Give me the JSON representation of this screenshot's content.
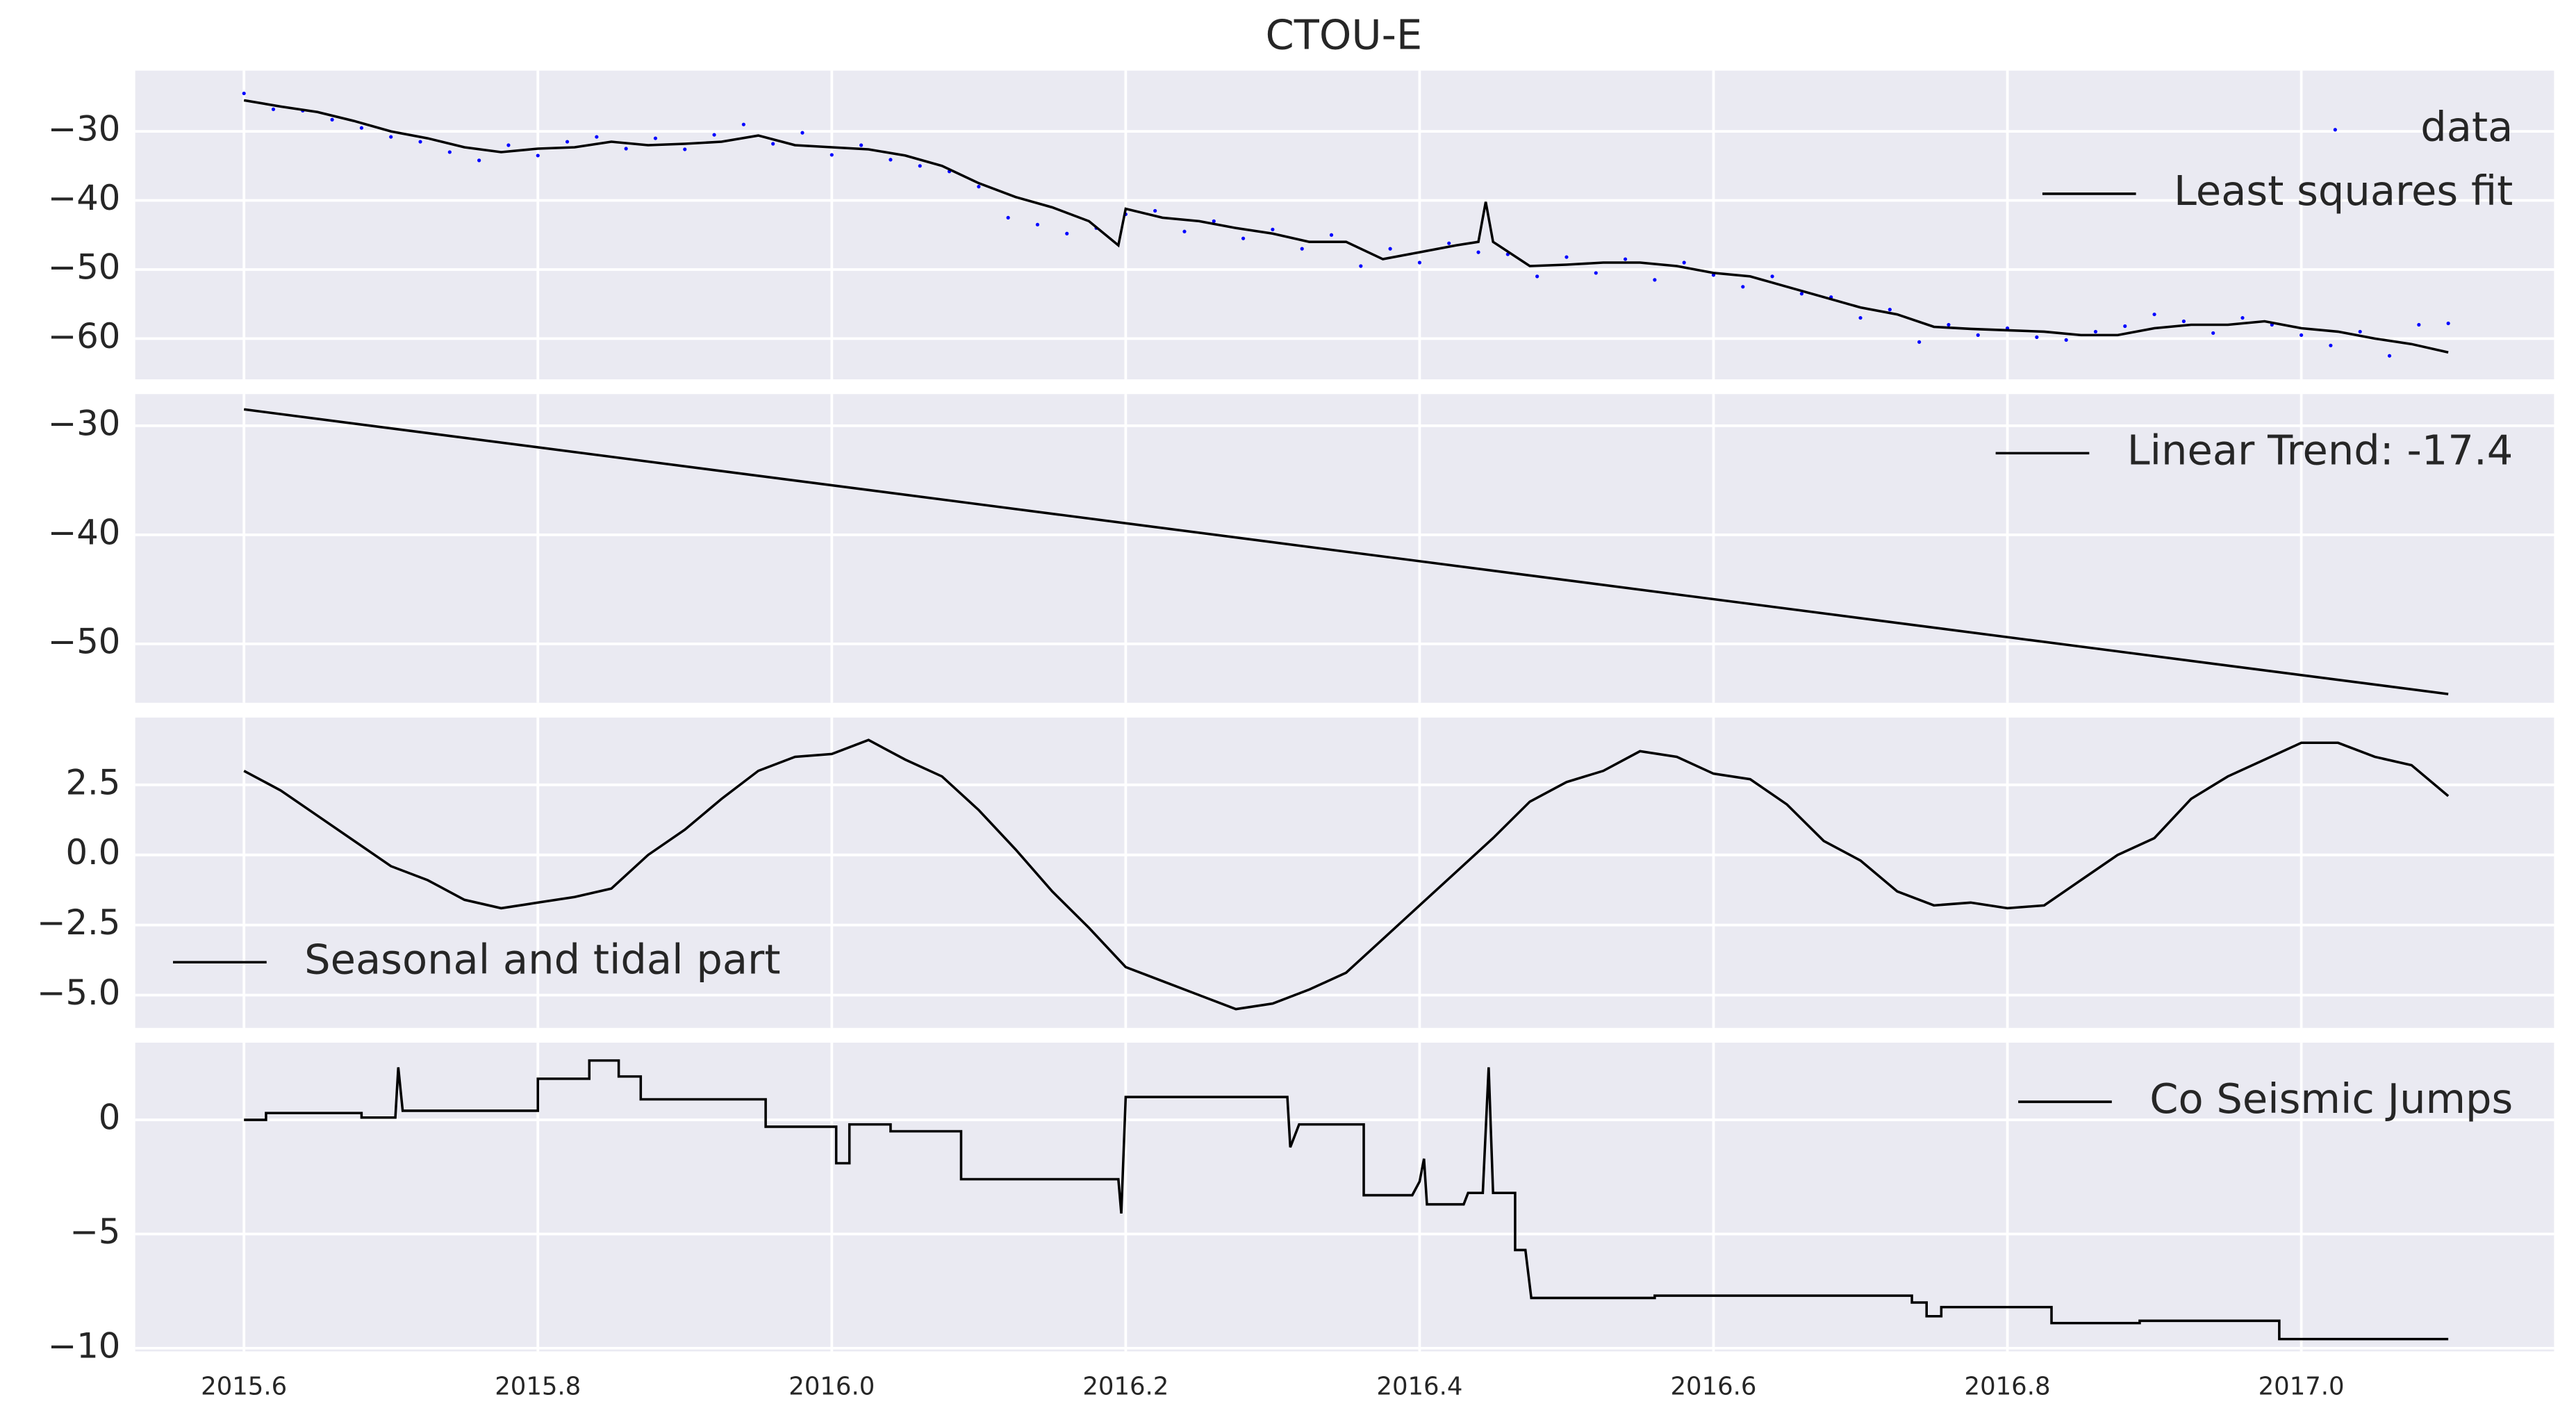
{
  "chart_data": [
    {
      "type": "line",
      "title": "CTOU-E",
      "legend": "upper right",
      "grid": true,
      "xlim": [
        2015.526,
        2017.172
      ],
      "ylim": [
        -65.9,
        -21.2
      ],
      "yticks": [
        {
          "value": -60,
          "label": "−60"
        },
        {
          "value": -50,
          "label": "−50"
        },
        {
          "value": -40,
          "label": "−40"
        },
        {
          "value": -30,
          "label": "−30"
        }
      ],
      "series": [
        {
          "name": "data",
          "color": "#0000ff",
          "style": "dots",
          "x": [
            2015.6,
            2015.62,
            2015.64,
            2015.66,
            2015.68,
            2015.7,
            2015.72,
            2015.74,
            2015.76,
            2015.78,
            2015.8,
            2015.82,
            2015.84,
            2015.86,
            2015.88,
            2015.9,
            2015.92,
            2015.94,
            2015.96,
            2015.98,
            2016.0,
            2016.02,
            2016.04,
            2016.06,
            2016.08,
            2016.1,
            2016.12,
            2016.14,
            2016.16,
            2016.18,
            2016.2,
            2016.22,
            2016.24,
            2016.26,
            2016.28,
            2016.3,
            2016.32,
            2016.34,
            2016.36,
            2016.38,
            2016.4,
            2016.42,
            2016.44,
            2016.46,
            2016.48,
            2016.5,
            2016.52,
            2016.54,
            2016.56,
            2016.58,
            2016.6,
            2016.62,
            2016.64,
            2016.66,
            2016.68,
            2016.7,
            2016.72,
            2016.74,
            2016.76,
            2016.78,
            2016.8,
            2016.82,
            2016.84,
            2016.86,
            2016.88,
            2016.9,
            2016.92,
            2016.94,
            2016.96,
            2016.98,
            2017.0,
            2017.02,
            2017.04,
            2017.06,
            2017.08,
            2017.1
          ],
          "values": [
            -24.5,
            -26.8,
            -27.0,
            -28.3,
            -29.5,
            -30.8,
            -31.5,
            -33.0,
            -34.2,
            -32.0,
            -33.5,
            -31.5,
            -30.8,
            -32.5,
            -31.0,
            -32.6,
            -30.5,
            -29.0,
            -31.8,
            -30.2,
            -33.4,
            -32.0,
            -34.1,
            -35.0,
            -35.8,
            -38.0,
            -42.5,
            -43.5,
            -44.8,
            -44.0,
            -42.0,
            -41.5,
            -44.5,
            -43.0,
            -45.5,
            -44.2,
            -47.0,
            -45.0,
            -49.5,
            -47.0,
            -49.0,
            -46.2,
            -47.5,
            -47.8,
            -51.0,
            -48.2,
            -50.5,
            -48.5,
            -51.5,
            -49.0,
            -50.8,
            -52.5,
            -51.0,
            -53.5,
            -54.0,
            -57.0,
            -55.8,
            -60.5,
            -58.0,
            -59.5,
            -58.5,
            -59.8,
            -60.2,
            -59.0,
            -58.2,
            -56.5,
            -57.5,
            -59.2,
            -57.0,
            -58.0,
            -59.5,
            -61.0,
            -59.0,
            -62.5,
            -58.0,
            -57.8
          ]
        },
        {
          "name": "Least squares fit",
          "color": "#000000",
          "style": "line",
          "x": [
            2015.6,
            2015.625,
            2015.65,
            2015.675,
            2015.7,
            2015.725,
            2015.75,
            2015.775,
            2015.8,
            2015.825,
            2015.85,
            2015.875,
            2015.9,
            2015.925,
            2015.95,
            2015.975,
            2016.0,
            2016.025,
            2016.05,
            2016.075,
            2016.1,
            2016.125,
            2016.15,
            2016.175,
            2016.195,
            2016.2,
            2016.225,
            2016.25,
            2016.275,
            2016.3,
            2016.325,
            2016.35,
            2016.375,
            2016.4,
            2016.425,
            2016.44,
            2016.445,
            2016.45,
            2016.475,
            2016.5,
            2016.525,
            2016.55,
            2016.575,
            2016.6,
            2016.625,
            2016.65,
            2016.675,
            2016.7,
            2016.725,
            2016.75,
            2016.775,
            2016.8,
            2016.825,
            2016.85,
            2016.875,
            2016.9,
            2016.925,
            2016.95,
            2016.975,
            2017.0,
            2017.025,
            2017.05,
            2017.075,
            2017.1
          ],
          "values": [
            -25.5,
            -26.4,
            -27.2,
            -28.5,
            -30.0,
            -31.0,
            -32.3,
            -33.0,
            -32.5,
            -32.3,
            -31.5,
            -32.0,
            -31.8,
            -31.5,
            -30.6,
            -32.0,
            -32.3,
            -32.6,
            -33.5,
            -35.0,
            -37.5,
            -39.5,
            -41.0,
            -43.0,
            -46.5,
            -41.2,
            -42.5,
            -43.0,
            -44.0,
            -44.8,
            -46.0,
            -46.0,
            -48.5,
            -47.5,
            -46.5,
            -46.0,
            -40.2,
            -46.0,
            -49.5,
            -49.3,
            -49.0,
            -49.0,
            -49.5,
            -50.5,
            -51.0,
            -52.5,
            -54.0,
            -55.5,
            -56.5,
            -58.3,
            -58.6,
            -58.8,
            -59.0,
            -59.5,
            -59.5,
            -58.5,
            -58.0,
            -58.0,
            -57.5,
            -58.5,
            -59.0,
            -60.0,
            -60.8,
            -62.0
          ]
        }
      ]
    },
    {
      "type": "line",
      "legend": "upper right",
      "grid": true,
      "xlim": [
        2015.526,
        2017.172
      ],
      "ylim": [
        -55.4,
        -27.1
      ],
      "yticks": [
        {
          "value": -50,
          "label": "−50"
        },
        {
          "value": -40,
          "label": "−40"
        },
        {
          "value": -30,
          "label": "−30"
        }
      ],
      "series": [
        {
          "name": "Linear Trend: -17.4",
          "color": "#000000",
          "style": "line",
          "x": [
            2015.6,
            2017.1
          ],
          "values": [
            -28.5,
            -54.6
          ]
        }
      ]
    },
    {
      "type": "line",
      "legend": "lower left",
      "grid": true,
      "xlim": [
        2015.526,
        2017.172
      ],
      "ylim": [
        -6.17,
        4.9
      ],
      "yticks": [
        {
          "value": -5,
          "label": "−5.0"
        },
        {
          "value": -2.5,
          "label": "−2.5"
        },
        {
          "value": 0,
          "label": "0.0"
        },
        2.5
      ],
      "series": [
        {
          "name": "Seasonal and tidal part",
          "color": "#000000",
          "style": "line",
          "x": [
            2015.6,
            2015.625,
            2015.65,
            2015.675,
            2015.7,
            2015.725,
            2015.75,
            2015.775,
            2015.8,
            2015.825,
            2015.85,
            2015.875,
            2015.9,
            2015.925,
            2015.95,
            2015.975,
            2016.0,
            2016.025,
            2016.05,
            2016.075,
            2016.1,
            2016.125,
            2016.15,
            2016.175,
            2016.2,
            2016.225,
            2016.25,
            2016.275,
            2016.3,
            2016.325,
            2016.35,
            2016.375,
            2016.4,
            2016.425,
            2016.45,
            2016.475,
            2016.5,
            2016.525,
            2016.55,
            2016.575,
            2016.6,
            2016.625,
            2016.65,
            2016.675,
            2016.7,
            2016.725,
            2016.75,
            2016.775,
            2016.8,
            2016.825,
            2016.85,
            2016.875,
            2016.9,
            2016.925,
            2016.95,
            2016.975,
            2017.0,
            2017.025,
            2017.05,
            2017.075,
            2017.1
          ],
          "values": [
            3.0,
            2.3,
            1.4,
            0.5,
            -0.4,
            -0.9,
            -1.6,
            -1.9,
            -1.7,
            -1.5,
            -1.2,
            0.0,
            0.9,
            2.0,
            3.0,
            3.5,
            3.6,
            4.1,
            3.4,
            2.8,
            1.6,
            0.2,
            -1.3,
            -2.6,
            -4.0,
            -4.5,
            -5.0,
            -5.5,
            -5.3,
            -4.8,
            -4.2,
            -3.0,
            -1.8,
            -0.6,
            0.6,
            1.9,
            2.6,
            3.0,
            3.7,
            3.5,
            2.9,
            2.7,
            1.8,
            0.5,
            -0.2,
            -1.3,
            -1.8,
            -1.7,
            -1.9,
            -1.8,
            -0.9,
            0.0,
            0.6,
            2.0,
            2.8,
            3.4,
            4.0,
            4.0,
            3.5,
            3.2,
            2.1
          ]
        }
      ]
    },
    {
      "type": "line",
      "legend": "upper right",
      "grid": true,
      "xlim": [
        2015.526,
        2017.172
      ],
      "ylim": [
        -10.14,
        3.38
      ],
      "yticks": [
        {
          "value": -10,
          "label": "−10"
        },
        {
          "value": -5,
          "label": "−5"
        },
        0
      ],
      "xticks": [
        2015.6,
        2015.8,
        {
          "value": 2016,
          "label": "2016.0"
        },
        2016.2,
        2016.4,
        2016.6,
        2016.8,
        {
          "value": 2017,
          "label": "2017.0"
        }
      ],
      "series": [
        {
          "name": "Co Seismic Jumps",
          "color": "#000000",
          "style": "line",
          "x": [
            2015.6,
            2015.615,
            2015.615,
            2015.68,
            2015.68,
            2015.703,
            2015.705,
            2015.708,
            2015.8,
            2015.8,
            2015.835,
            2015.835,
            2015.855,
            2015.855,
            2015.87,
            2015.87,
            2015.955,
            2015.955,
            2016.003,
            2016.003,
            2016.012,
            2016.012,
            2016.04,
            2016.04,
            2016.088,
            2016.088,
            2016.195,
            2016.197,
            2016.2,
            2016.31,
            2016.312,
            2016.318,
            2016.362,
            2016.362,
            2016.395,
            2016.4,
            2016.403,
            2016.405,
            2016.43,
            2016.433,
            2016.443,
            2016.447,
            2016.45,
            2016.465,
            2016.465,
            2016.472,
            2016.476,
            2016.56,
            2016.56,
            2016.735,
            2016.735,
            2016.745,
            2016.745,
            2016.755,
            2016.755,
            2016.83,
            2016.83,
            2016.89,
            2016.89,
            2016.985,
            2016.985,
            2017.1
          ],
          "values": [
            0,
            0,
            0.3,
            0.3,
            0.1,
            0.1,
            2.3,
            0.4,
            0.4,
            1.8,
            1.8,
            2.6,
            2.6,
            1.9,
            1.9,
            0.9,
            0.9,
            -0.3,
            -0.3,
            -1.9,
            -1.9,
            -0.2,
            -0.2,
            -0.5,
            -0.5,
            -2.6,
            -2.6,
            -4.1,
            1.0,
            1.0,
            -1.2,
            -0.2,
            -0.2,
            -3.3,
            -3.3,
            -2.7,
            -1.7,
            -3.7,
            -3.7,
            -3.2,
            -3.2,
            2.3,
            -3.2,
            -3.2,
            -5.7,
            -5.7,
            -7.8,
            -7.8,
            -7.7,
            -7.7,
            -8.0,
            -8.0,
            -8.6,
            -8.6,
            -8.2,
            -8.2,
            -8.9,
            -8.9,
            -8.8,
            -8.8,
            -9.6,
            -9.6
          ]
        }
      ]
    }
  ]
}
